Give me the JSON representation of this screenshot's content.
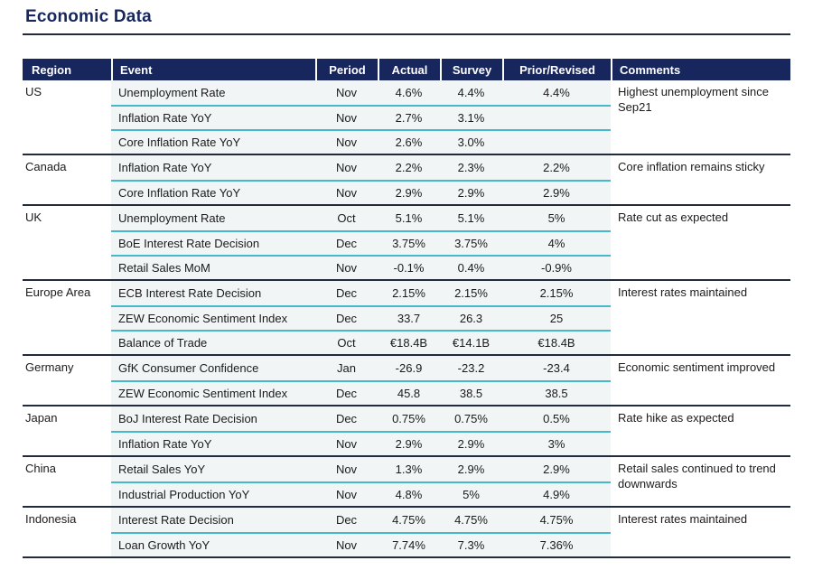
{
  "page_title": "Economic Data",
  "colors": {
    "header_navy": "#17265c",
    "rule_dark": "#222b3c",
    "row_divider_cyan": "#45b8ce",
    "row_tint": "#f2f5f5",
    "header_text": "#ffffff",
    "body_text": "#1b1b1b"
  },
  "table": {
    "columns": [
      "Region",
      "Event",
      "Period",
      "Actual",
      "Survey",
      "Prior/Revised",
      "Comments"
    ],
    "column_keys": [
      "region",
      "event",
      "period",
      "actual",
      "survey",
      "prior",
      "comments"
    ],
    "groups": [
      {
        "region": "US",
        "comment": "Highest unemployment since Sep21",
        "rows": [
          {
            "event": "Unemployment Rate",
            "period": "Nov",
            "actual": "4.6%",
            "survey": "4.4%",
            "prior": "4.4%"
          },
          {
            "event": "Inflation Rate YoY",
            "period": "Nov",
            "actual": "2.7%",
            "survey": "3.1%",
            "prior": ""
          },
          {
            "event": "Core Inflation Rate YoY",
            "period": "Nov",
            "actual": "2.6%",
            "survey": "3.0%",
            "prior": ""
          }
        ]
      },
      {
        "region": "Canada",
        "comment": "Core inflation remains sticky",
        "rows": [
          {
            "event": "Inflation Rate YoY",
            "period": "Nov",
            "actual": "2.2%",
            "survey": "2.3%",
            "prior": "2.2%"
          },
          {
            "event": "Core Inflation Rate YoY",
            "period": "Nov",
            "actual": "2.9%",
            "survey": "2.9%",
            "prior": "2.9%"
          }
        ]
      },
      {
        "region": "UK",
        "comment": "Rate cut as expected",
        "rows": [
          {
            "event": "Unemployment Rate",
            "period": "Oct",
            "actual": "5.1%",
            "survey": "5.1%",
            "prior": "5%"
          },
          {
            "event": "BoE Interest Rate Decision",
            "period": "Dec",
            "actual": "3.75%",
            "survey": "3.75%",
            "prior": "4%"
          },
          {
            "event": "Retail Sales MoM",
            "period": "Nov",
            "actual": "-0.1%",
            "survey": "0.4%",
            "prior": "-0.9%"
          }
        ]
      },
      {
        "region": "Europe Area",
        "comment": "Interest rates maintained",
        "rows": [
          {
            "event": "ECB Interest Rate Decision",
            "period": "Dec",
            "actual": "2.15%",
            "survey": "2.15%",
            "prior": "2.15%"
          },
          {
            "event": "ZEW Economic Sentiment Index",
            "period": "Dec",
            "actual": "33.7",
            "survey": "26.3",
            "prior": "25"
          },
          {
            "event": "Balance of Trade",
            "period": "Oct",
            "actual": "€18.4B",
            "survey": "€14.1B",
            "prior": "€18.4B"
          }
        ]
      },
      {
        "region": "Germany",
        "comment": "Economic sentiment improved",
        "rows": [
          {
            "event": "GfK Consumer Confidence",
            "period": "Jan",
            "actual": "-26.9",
            "survey": "-23.2",
            "prior": "-23.4"
          },
          {
            "event": "ZEW Economic Sentiment Index",
            "period": "Dec",
            "actual": "45.8",
            "survey": "38.5",
            "prior": "38.5"
          }
        ]
      },
      {
        "region": "Japan",
        "comment": "Rate hike as expected",
        "rows": [
          {
            "event": "BoJ Interest Rate Decision",
            "period": "Dec",
            "actual": "0.75%",
            "survey": "0.75%",
            "prior": "0.5%"
          },
          {
            "event": "Inflation Rate YoY",
            "period": "Nov",
            "actual": "2.9%",
            "survey": "2.9%",
            "prior": "3%"
          }
        ]
      },
      {
        "region": "China",
        "comment": "Retail sales continued to trend downwards",
        "rows": [
          {
            "event": "Retail Sales YoY",
            "period": "Nov",
            "actual": "1.3%",
            "survey": "2.9%",
            "prior": "2.9%"
          },
          {
            "event": "Industrial Production YoY",
            "period": "Nov",
            "actual": "4.8%",
            "survey": "5%",
            "prior": "4.9%"
          }
        ]
      },
      {
        "region": "Indonesia",
        "comment": "Interest rates maintained",
        "rows": [
          {
            "event": "Interest Rate Decision",
            "period": "Dec",
            "actual": "4.75%",
            "survey": "4.75%",
            "prior": "4.75%"
          },
          {
            "event": "Loan Growth YoY",
            "period": "Nov",
            "actual": "7.74%",
            "survey": "7.3%",
            "prior": "7.36%"
          }
        ]
      }
    ]
  }
}
